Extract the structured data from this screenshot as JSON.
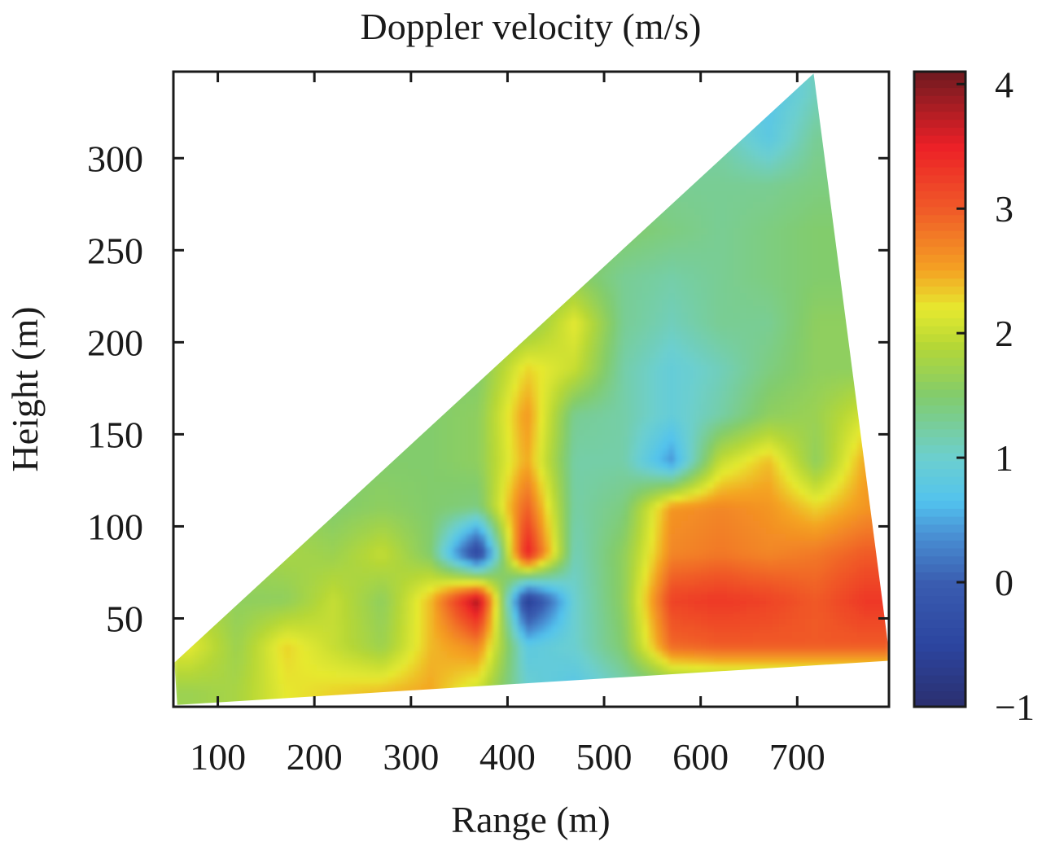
{
  "chart_data": {
    "type": "heatmap",
    "title": "Doppler velocity (m/s)",
    "xlabel": "Range (m)",
    "ylabel": "Height (m)",
    "xlim": [
      54,
      795
    ],
    "ylim": [
      2,
      347
    ],
    "xticks": [
      100,
      200,
      300,
      400,
      500,
      600,
      700
    ],
    "xtick_labels": [
      "100",
      "200",
      "300",
      "400",
      "500",
      "600",
      "700"
    ],
    "yticks": [
      50,
      100,
      150,
      200,
      250,
      300
    ],
    "ytick_labels": [
      "50",
      "100",
      "150",
      "200",
      "250",
      "300"
    ],
    "colorbar": {
      "range": [
        -1,
        4.1
      ],
      "ticks": [
        -1,
        0,
        1,
        2,
        3,
        4
      ],
      "tick_labels": [
        "−1",
        "0",
        "1",
        "2",
        "3",
        "4"
      ],
      "placement": "right"
    },
    "colormap": [
      {
        "value": -1.0,
        "color": "#2b2f6e"
      },
      {
        "value": -0.5,
        "color": "#2c45a0"
      },
      {
        "value": 0.0,
        "color": "#3a5db0"
      },
      {
        "value": 0.4,
        "color": "#4a93d6"
      },
      {
        "value": 0.65,
        "color": "#52c3ee"
      },
      {
        "value": 1.0,
        "color": "#6ccfcf"
      },
      {
        "value": 1.5,
        "color": "#82cc6c"
      },
      {
        "value": 1.9,
        "color": "#b5d736"
      },
      {
        "value": 2.2,
        "color": "#e6e92f"
      },
      {
        "value": 2.5,
        "color": "#f4a423"
      },
      {
        "value": 3.0,
        "color": "#f05a28"
      },
      {
        "value": 3.5,
        "color": "#ec2027"
      },
      {
        "value": 4.1,
        "color": "#6e1a20"
      }
    ],
    "coverage_polygon": [
      [
        58,
        3
      ],
      [
        55,
        26
      ],
      [
        717,
        346
      ],
      [
        795,
        32
      ],
      [
        795,
        27
      ]
    ],
    "x": [
      70,
      120,
      170,
      220,
      270,
      320,
      370,
      420,
      470,
      520,
      570,
      620,
      670,
      720,
      770
    ],
    "y": [
      10,
      35,
      60,
      85,
      110,
      135,
      160,
      185,
      210,
      235,
      260,
      285,
      310,
      335
    ],
    "z": [
      [
        1.7,
        1.8,
        2.2,
        2.3,
        2.4,
        2.5,
        2.0,
        1.0,
        0.7,
        1.1,
        1.3,
        1.4,
        1.4,
        1.4,
        1.4
      ],
      [
        2.2,
        1.7,
        2.3,
        2.0,
        1.7,
        2.4,
        2.7,
        0.8,
        1.0,
        1.5,
        2.9,
        3.0,
        3.0,
        3.0,
        3.0
      ],
      [
        null,
        1.6,
        1.6,
        2.0,
        1.6,
        2.4,
        3.9,
        -0.7,
        1.0,
        1.6,
        3.2,
        3.3,
        3.2,
        3.0,
        3.3
      ],
      [
        null,
        null,
        1.8,
        1.7,
        2.0,
        1.5,
        -0.6,
        3.6,
        1.1,
        1.6,
        2.7,
        2.8,
        2.7,
        2.8,
        3.0
      ],
      [
        null,
        null,
        null,
        1.5,
        1.6,
        1.5,
        1.4,
        3.0,
        1.2,
        1.4,
        2.6,
        2.7,
        2.6,
        2.3,
        2.6
      ],
      [
        null,
        null,
        null,
        null,
        1.5,
        1.5,
        1.6,
        2.5,
        1.2,
        1.2,
        0.4,
        2.0,
        2.4,
        1.6,
        2.5
      ],
      [
        null,
        null,
        null,
        null,
        null,
        1.5,
        1.6,
        2.6,
        1.3,
        1.2,
        0.9,
        1.2,
        1.6,
        1.7,
        null
      ],
      [
        null,
        null,
        null,
        null,
        null,
        null,
        1.5,
        2.3,
        2.0,
        1.2,
        0.9,
        1.1,
        1.4,
        1.6,
        null
      ],
      [
        null,
        null,
        null,
        null,
        null,
        null,
        null,
        1.6,
        2.2,
        1.3,
        1.1,
        1.3,
        1.3,
        1.6,
        null
      ],
      [
        null,
        null,
        null,
        null,
        null,
        null,
        null,
        null,
        1.6,
        1.3,
        1.2,
        1.3,
        1.4,
        1.5,
        null
      ],
      [
        null,
        null,
        null,
        null,
        null,
        null,
        null,
        null,
        null,
        1.5,
        1.4,
        1.3,
        1.4,
        1.5,
        null
      ],
      [
        null,
        null,
        null,
        null,
        null,
        null,
        null,
        null,
        null,
        null,
        1.3,
        1.3,
        1.3,
        1.4,
        null
      ],
      [
        null,
        null,
        null,
        null,
        null,
        null,
        null,
        null,
        null,
        null,
        null,
        1.2,
        0.8,
        1.3,
        null
      ],
      [
        null,
        null,
        null,
        null,
        null,
        null,
        null,
        null,
        null,
        null,
        null,
        null,
        0.7,
        1.1,
        null
      ]
    ]
  }
}
